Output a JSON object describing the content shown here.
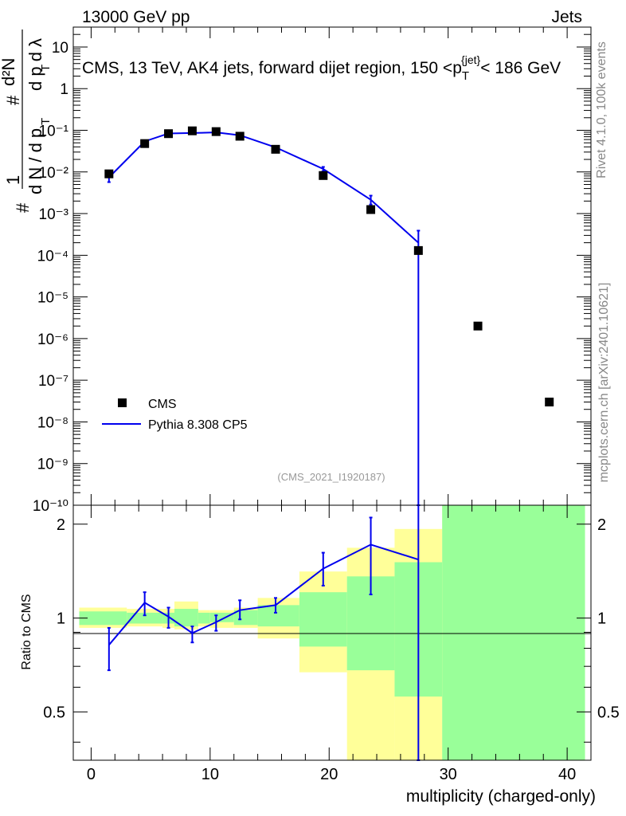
{
  "header": {
    "left": "13000 GeV pp",
    "right": "Jets"
  },
  "side": {
    "rivet": "Rivet 4.1.0,  100k events",
    "mcplots": "mcplots.cern.ch [arXiv:2401.10621]"
  },
  "colors": {
    "mc": "#0000ee",
    "band_inner": "#99ff99",
    "band_outer": "#ffff99",
    "data": "#000000"
  },
  "chart_data": [
    {
      "type": "scatter",
      "title": "CMS, 13 TeV, AK4 jets, forward dijet region, 150 <p_T^{jet}< 186 GeV",
      "title_parts": {
        "pre": "CMS, 13 TeV, AK4 jets, forward dijet region, 150 <p",
        "sub": "T",
        "sup": "{jet}",
        "post": "< 186 GeV"
      },
      "ylabel": "1/dN/dp_T  d²N/dp_T dλ",
      "yscale": "log",
      "ylim": [
        1e-10,
        30
      ],
      "xlim": [
        -1.5,
        42
      ],
      "ytick_labels": [
        "10⁻¹⁰",
        "10⁻⁹",
        "10⁻⁸",
        "10⁻⁷",
        "10⁻⁶",
        "10⁻⁵",
        "10⁻⁴",
        "10⁻³",
        "10⁻²",
        "10⁻¹",
        "1",
        "10"
      ],
      "annotation": "(CMS_2021_I1920187)",
      "legend": {
        "position": "bottom-left",
        "data_label": "CMS",
        "mc_label": "Pythia 8.308 CP5"
      },
      "series": [
        {
          "name": "CMS",
          "x": [
            1.5,
            4.5,
            6.5,
            8.5,
            10.5,
            12.5,
            15.5,
            19.5,
            23.5,
            27.5,
            32.5,
            38.5
          ],
          "y": [
            0.009,
            0.048,
            0.083,
            0.097,
            0.093,
            0.072,
            0.035,
            0.0082,
            0.00125,
            0.00013,
            2e-06,
            3e-08
          ]
        },
        {
          "name": "Pythia 8.308 CP5",
          "x": [
            1.5,
            4.5,
            6.5,
            8.5,
            10.5,
            12.5,
            15.5,
            19.5,
            23.5,
            27.5
          ],
          "y": [
            0.0074,
            0.054,
            0.084,
            0.086,
            0.089,
            0.076,
            0.039,
            0.0118,
            0.00215,
            0.0002
          ],
          "err_low": [
            0.0057,
            0.051,
            0.081,
            0.083,
            0.086,
            0.073,
            0.037,
            0.0104,
            0.00165,
            1e-11
          ],
          "err_high": [
            0.0091,
            0.057,
            0.087,
            0.089,
            0.092,
            0.079,
            0.041,
            0.0132,
            0.0027,
            0.00039
          ]
        }
      ]
    },
    {
      "type": "line",
      "ylabel": "Ratio to CMS",
      "xlabel": "multiplicity (charged-only)",
      "xlim": [
        -1.5,
        42
      ],
      "ylim": [
        0.35,
        2.3
      ],
      "xtick_labels": [
        "0",
        "10",
        "20",
        "30",
        "40"
      ],
      "ytick_labels": [
        "0.5",
        "1",
        "2"
      ],
      "series": [
        {
          "name": "Pythia 8.308 CP5",
          "x": [
            1.5,
            4.5,
            6.5,
            8.5,
            10.5,
            12.5,
            15.5,
            19.5,
            23.5,
            27.5
          ],
          "y": [
            0.82,
            1.12,
            1.01,
            0.895,
            0.97,
            1.06,
            1.1,
            1.44,
            1.72,
            1.54
          ],
          "err_low": [
            0.68,
            1.02,
            0.93,
            0.835,
            0.91,
            0.99,
            1.04,
            1.27,
            1.19,
            0.01
          ],
          "err_high": [
            0.93,
            1.21,
            1.08,
            0.94,
            1.02,
            1.14,
            1.16,
            1.62,
            2.1,
            2.3
          ]
        }
      ],
      "bands": [
        {
          "xlo": -1,
          "xhi": 3,
          "inner": [
            0.95,
            1.05
          ],
          "outer": [
            0.93,
            1.08
          ]
        },
        {
          "xlo": 3,
          "xhi": 6,
          "inner": [
            0.96,
            1.04
          ],
          "outer": [
            0.94,
            1.07
          ]
        },
        {
          "xlo": 6,
          "xhi": 7,
          "inner": [
            0.96,
            1.04
          ],
          "outer": [
            0.93,
            1.07
          ]
        },
        {
          "xlo": 7,
          "xhi": 9,
          "inner": [
            0.94,
            1.07
          ],
          "outer": [
            0.92,
            1.13
          ]
        },
        {
          "xlo": 9,
          "xhi": 10,
          "inner": [
            0.96,
            1.04
          ],
          "outer": [
            0.94,
            1.06
          ]
        },
        {
          "xlo": 10,
          "xhi": 12,
          "inner": [
            0.97,
            1.04
          ],
          "outer": [
            0.93,
            1.06
          ]
        },
        {
          "xlo": 12,
          "xhi": 14,
          "inner": [
            0.95,
            1.06
          ],
          "outer": [
            0.93,
            1.08
          ]
        },
        {
          "xlo": 14,
          "xhi": 17.5,
          "inner": [
            0.94,
            1.1
          ],
          "outer": [
            0.86,
            1.16
          ]
        },
        {
          "xlo": 17.5,
          "xhi": 21.5,
          "inner": [
            0.81,
            1.21
          ],
          "outer": [
            0.67,
            1.41
          ]
        },
        {
          "xlo": 21.5,
          "xhi": 25.5,
          "inner": [
            0.68,
            1.36
          ],
          "outer": [
            0.35,
            1.68
          ]
        },
        {
          "xlo": 25.5,
          "xhi": 29.5,
          "inner": [
            0.56,
            1.51
          ],
          "outer": [
            0.35,
            1.93
          ]
        },
        {
          "xlo": 29.5,
          "xhi": 41.5,
          "inner": [
            0.35,
            2.3
          ],
          "outer": [
            0.35,
            2.3
          ]
        }
      ]
    }
  ]
}
